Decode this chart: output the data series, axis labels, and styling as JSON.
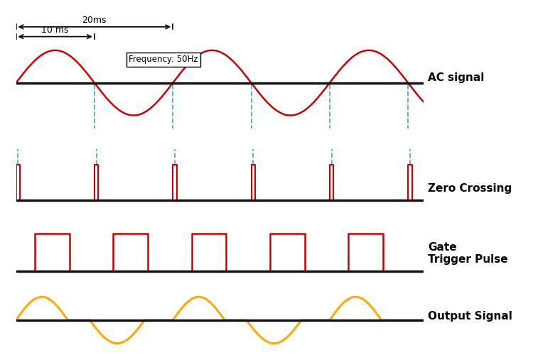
{
  "bg_color": "#ffffff",
  "ac_color": "#cc0000",
  "zc_pulse_color": "#cc0000",
  "zc_dashed_color": "#55aacc",
  "gate_color": "#cc0000",
  "output_color": "#ffaa00",
  "baseline_color": "#111111",
  "text_color": "#111111",
  "freq_label": "Frequency: 50Hz",
  "label_ac": "AC signal",
  "label_zc": "Zero Crossing",
  "label_gate": "Gate\nTrigger Pulse",
  "label_output": "Output Signal",
  "annotation_20ms": "20ms",
  "annotation_10ms": "10 ms",
  "T": 0.02,
  "f": 50,
  "x_max": 0.052
}
